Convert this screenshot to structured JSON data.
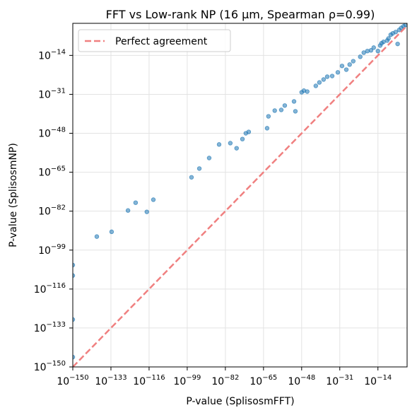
{
  "chart_data": {
    "type": "scatter",
    "title": "FFT vs Low-rank NP (16 µm, Spearman ρ=0.99)",
    "x_label": "P-value (SplisosmFFT)",
    "y_label": "P-value (SplisosmNP)",
    "log_x": true,
    "log_y": true,
    "grid": true,
    "legend": "upper left",
    "xlim": [
      1e-150,
      0.1
    ],
    "ylim": [
      1e-150,
      1
    ],
    "xticks": [
      {
        "value": 1e-150,
        "label": "10−150"
      },
      {
        "value": 1e-133,
        "label": "10−133"
      },
      {
        "value": 1e-116,
        "label": "10−116"
      },
      {
        "value": 1e-99,
        "label": "10−99"
      },
      {
        "value": 1e-82,
        "label": "10−82"
      },
      {
        "value": 1e-65,
        "label": "10−65"
      },
      {
        "value": 1e-48,
        "label": "10−48"
      },
      {
        "value": 1e-31,
        "label": "10−31"
      },
      {
        "value": 1e-14,
        "label": "10−14"
      }
    ],
    "yticks": [
      {
        "value": 1e-150,
        "label": "10−150"
      },
      {
        "value": 1e-133,
        "label": "10−133"
      },
      {
        "value": 1e-116,
        "label": "10−116"
      },
      {
        "value": 1e-99,
        "label": "10−99"
      },
      {
        "value": 1e-82,
        "label": "10−82"
      },
      {
        "value": 1e-65,
        "label": "10−65"
      },
      {
        "value": 1e-48,
        "label": "10−48"
      },
      {
        "value": 1e-31,
        "label": "10−31"
      },
      {
        "value": 1e-14,
        "label": "10−14"
      }
    ],
    "series": [
      {
        "type": "scatter",
        "color": "#1f77b4",
        "x": [
          1e-150,
          1e-150,
          1e-150,
          1e-150,
          5e-140,
          2e-133,
          4e-126,
          1e-122,
          1e-117,
          8e-115,
          8e-98,
          2.5e-94,
          6e-90,
          1.6e-85,
          1.6e-80,
          1e-77,
          4e-75,
          1.3e-73,
          2.5e-72,
          4e-64,
          1.6e-63,
          1e-60,
          8e-58,
          3e-56,
          4e-52,
          1.6e-51,
          1e-48,
          1e-47,
          3e-46,
          2e-42,
          8e-41,
          6e-39,
          2.5e-37,
          4e-35,
          1.3e-32,
          1e-30,
          8e-29,
          2.5e-27,
          1e-25,
          1.3e-22,
          5e-21,
          2e-19,
          8e-18,
          1.3e-16,
          1e-13,
          1e-14,
          4e-13,
          3e-12,
          1.3e-10,
          5e-10,
          5e-09,
          4e-08,
          8e-07,
          6e-06,
          3e-05,
          0.00025,
          0.0025,
          0.02
        ],
        "values": [
          3e-106,
          8e-111,
          5e-130,
          2e-146,
          8e-94,
          1e-91,
          2e-82,
          5e-79,
          5e-83,
          1e-77,
          6e-68,
          4e-64,
          1.6e-59,
          1.3e-53,
          5e-53,
          3e-55,
          3e-51,
          1e-48,
          4e-48,
          1.6e-46,
          2.5e-41,
          8e-39,
          1.6e-38,
          1.3e-36,
          8e-35,
          4e-39,
          8e-31,
          4e-30,
          1.6e-30,
          5e-28,
          1.6e-26,
          3e-25,
          5e-24,
          1e-23,
          4e-22,
          2.5e-19,
          6e-21,
          1e-18,
          3e-17,
          2.5e-15,
          1.6e-13,
          8e-13,
          1.6e-12,
          2.5e-11,
          2e-10,
          8e-13,
          2e-09,
          8e-09,
          3e-08,
          2.5e-07,
          1e-05,
          4e-05,
          0.00016,
          1e-09,
          0.0013,
          0.01,
          0.05,
          0.2
        ]
      },
      {
        "type": "line",
        "name": "Perfect agreement",
        "color": "#f08080",
        "dashed": true,
        "x": [
          1e-150,
          0.1
        ],
        "values": [
          1e-150,
          0.1
        ]
      }
    ]
  }
}
